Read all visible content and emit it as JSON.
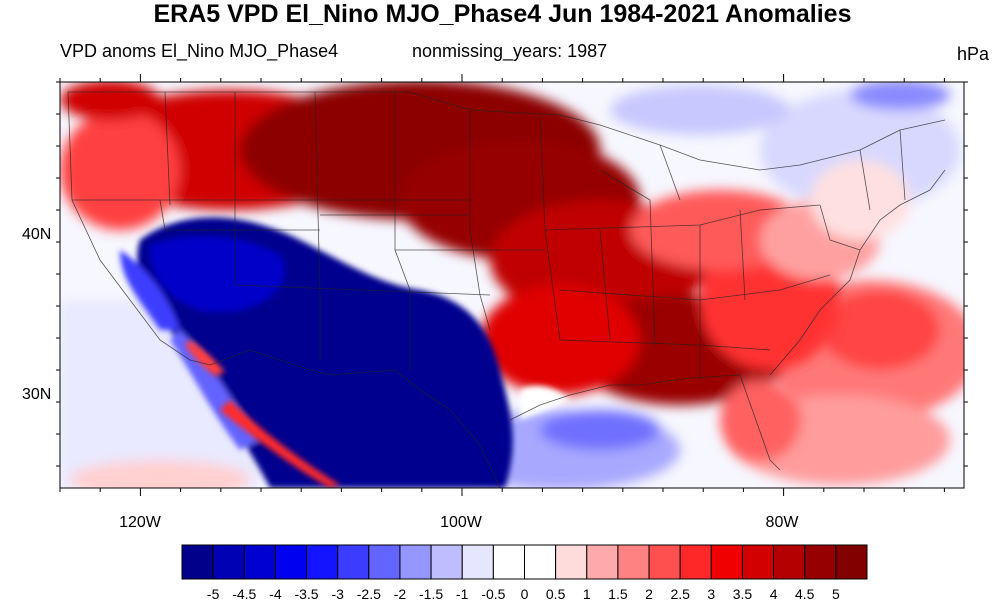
{
  "title": "ERA5 VPD El_Nino MJO_Phase4 Jun 1984-2021 Anomalies",
  "subtitle_left": "VPD anoms El_Nino MJO_Phase4",
  "subtitle_center": "nonmissing_years: 1987",
  "units": "hPa",
  "lat_labels": [
    "40N",
    "30N"
  ],
  "lon_labels": [
    "120W",
    "100W",
    "80W"
  ],
  "colorbar": {
    "ticks": [
      "-5",
      "-4.5",
      "-4",
      "-3.5",
      "-3",
      "-2.5",
      "-2",
      "-1.5",
      "-1",
      "-0.5",
      "0",
      "0.5",
      "1",
      "1.5",
      "2",
      "2.5",
      "3",
      "3.5",
      "4",
      "4.5",
      "5"
    ],
    "colors": [
      "#00008b",
      "#0000b4",
      "#0000d2",
      "#0000f0",
      "#1414ff",
      "#3c3cff",
      "#6464ff",
      "#9696ff",
      "#bebeff",
      "#e6e6ff",
      "#ffffff",
      "#ffffff",
      "#ffdcdc",
      "#ffaaaa",
      "#ff8282",
      "#ff5050",
      "#ff2828",
      "#f00000",
      "#d20000",
      "#b40000",
      "#960000",
      "#820000"
    ]
  },
  "map": {
    "lon_range": [
      -125,
      -68
    ],
    "lat_range": [
      24,
      50
    ],
    "projection": "cylindrical equidistant",
    "grid": false
  }
}
